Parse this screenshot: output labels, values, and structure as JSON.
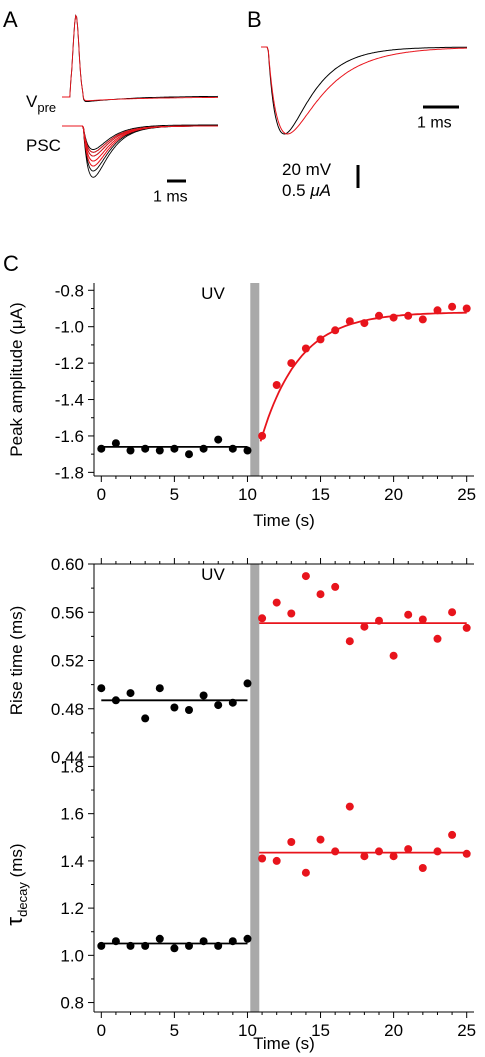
{
  "colors": {
    "control": "#000000",
    "uv": "#e8141c",
    "uv_bar": "#a9a9a9"
  },
  "panels": {
    "A": {
      "letter": "A",
      "vpre_label": "V",
      "vpre_sub": "pre",
      "psc_label": "PSC",
      "scale_label": "1 ms"
    },
    "B": {
      "letter": "B",
      "scale_label": "1 ms",
      "vscale_mv": "20 mV",
      "vscale_ua_num": "0.5 ",
      "vscale_ua_unit": "μA"
    },
    "C": {
      "letter": "C",
      "uv_label": "UV"
    }
  },
  "chart_data": [
    {
      "id": "amp",
      "type": "scatter",
      "ylabel": "Peak amplitude (μA)",
      "xlabel": "Time (s)",
      "xlim": [
        -0.5,
        25.5
      ],
      "ylim": [
        -1.82,
        -0.76
      ],
      "xticks": [
        0,
        5,
        10,
        15,
        20,
        25
      ],
      "yticks": [
        -1.8,
        -1.6,
        -1.4,
        -1.2,
        -1.0,
        -0.8
      ],
      "ytick_labels": [
        "-1.8",
        "-1.6",
        "-1.4",
        "-1.2",
        "-1.0",
        "-0.8"
      ],
      "uv_time": 10.5,
      "show_uv_label": true,
      "show_xlabel": true,
      "series": [
        {
          "role": "control",
          "x": [
            0,
            1,
            2,
            3,
            4,
            5,
            6,
            7,
            8,
            9,
            10
          ],
          "y": [
            -1.67,
            -1.64,
            -1.68,
            -1.67,
            -1.68,
            -1.67,
            -1.7,
            -1.67,
            -1.62,
            -1.67,
            -1.68
          ]
        },
        {
          "role": "uv",
          "x": [
            11,
            12,
            13,
            14,
            15,
            16,
            17,
            18,
            19,
            20,
            21,
            22,
            23,
            24,
            25
          ],
          "y": [
            -1.6,
            -1.32,
            -1.2,
            -1.12,
            -1.07,
            -1.02,
            -0.97,
            -0.98,
            -0.94,
            -0.95,
            -0.94,
            -0.96,
            -0.91,
            -0.89,
            -0.9
          ]
        }
      ],
      "fits": [
        {
          "role": "control",
          "kind": "flat",
          "x0": 0,
          "x1": 10,
          "value": -1.66
        },
        {
          "role": "uv",
          "kind": "exp",
          "x0": 10.9,
          "x1": 25,
          "start": -1.63,
          "plateau": -0.92,
          "tau": 2.6
        }
      ]
    },
    {
      "id": "rise",
      "type": "scatter",
      "ylabel": "Rise time (ms)",
      "xlabel": "",
      "xlim": [
        -0.5,
        25.5
      ],
      "ylim": [
        0.44,
        0.6
      ],
      "xticks": [
        0,
        5,
        10,
        15,
        20,
        25
      ],
      "yticks": [
        0.44,
        0.48,
        0.52,
        0.56,
        0.6
      ],
      "ytick_labels": [
        "0.44",
        "0.48",
        "0.52",
        "0.56",
        "0.60"
      ],
      "uv_time": 10.5,
      "show_uv_label": true,
      "show_xlabel": false,
      "series": [
        {
          "role": "control",
          "x": [
            0,
            1,
            2,
            3,
            4,
            5,
            6,
            7,
            8,
            9,
            10
          ],
          "y": [
            0.497,
            0.487,
            0.493,
            0.472,
            0.497,
            0.481,
            0.479,
            0.491,
            0.483,
            0.485,
            0.501
          ]
        },
        {
          "role": "uv",
          "x": [
            11,
            12,
            13,
            14,
            15,
            16,
            17,
            18,
            19,
            20,
            21,
            22,
            23,
            24,
            25
          ],
          "y": [
            0.555,
            0.568,
            0.559,
            0.59,
            0.575,
            0.581,
            0.536,
            0.548,
            0.553,
            0.524,
            0.558,
            0.554,
            0.538,
            0.56,
            0.547
          ]
        }
      ],
      "fits": [
        {
          "role": "control",
          "kind": "flat",
          "x0": 0,
          "x1": 10,
          "value": 0.487
        },
        {
          "role": "uv",
          "kind": "flat",
          "x0": 10.8,
          "x1": 25,
          "value": 0.551
        }
      ]
    },
    {
      "id": "tau",
      "type": "scatter",
      "ylabel": "τ",
      "ylabel_sub": "decay",
      "ylabel_suffix": " (ms)",
      "xlabel": "Time (s)",
      "xlim": [
        -0.5,
        25.5
      ],
      "ylim": [
        0.76,
        1.84
      ],
      "xticks": [
        0,
        5,
        10,
        15,
        20,
        25
      ],
      "yticks": [
        0.8,
        1.0,
        1.2,
        1.4,
        1.6,
        1.8
      ],
      "ytick_labels": [
        "0.8",
        "1.0",
        "1.2",
        "1.4",
        "1.6",
        "1.8"
      ],
      "uv_time": 10.5,
      "show_uv_label": false,
      "show_xlabel": true,
      "series": [
        {
          "role": "control",
          "x": [
            0,
            1,
            2,
            3,
            4,
            5,
            6,
            7,
            8,
            9,
            10
          ],
          "y": [
            1.04,
            1.06,
            1.04,
            1.04,
            1.07,
            1.03,
            1.04,
            1.06,
            1.04,
            1.06,
            1.07
          ]
        },
        {
          "role": "uv",
          "x": [
            11,
            12,
            13,
            14,
            15,
            16,
            17,
            18,
            19,
            20,
            21,
            22,
            23,
            24,
            25
          ],
          "y": [
            1.41,
            1.4,
            1.48,
            1.35,
            1.49,
            1.44,
            1.63,
            1.42,
            1.44,
            1.42,
            1.45,
            1.37,
            1.44,
            1.51,
            1.43
          ]
        }
      ],
      "fits": [
        {
          "role": "control",
          "kind": "flat",
          "x0": 0,
          "x1": 10,
          "value": 1.05
        },
        {
          "role": "uv",
          "kind": "flat",
          "x0": 10.8,
          "x1": 25,
          "value": 1.435
        }
      ]
    }
  ]
}
